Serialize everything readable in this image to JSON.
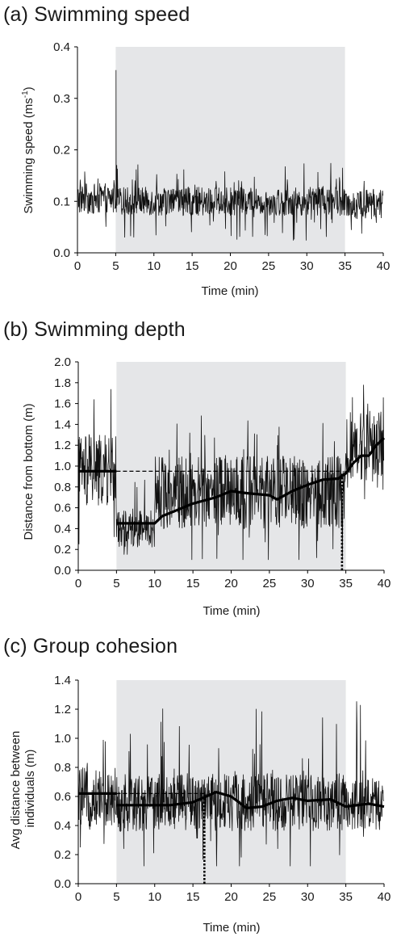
{
  "chart_data": [
    {
      "type": "line",
      "panel_label": "(a) Swimming speed",
      "xlabel": "Time (min)",
      "ylabel": "Swimming speed (ms-1)",
      "ylabel_main": "Swimming speed (ms",
      "ylabel_sup": "-1",
      "ylabel_end": ")",
      "xlim": [
        0,
        40
      ],
      "ylim": [
        0,
        0.4
      ],
      "x_ticks": [
        0,
        5,
        10,
        15,
        20,
        25,
        30,
        35,
        40
      ],
      "y_ticks": [
        "0.0",
        "0.1",
        "0.2",
        "0.3",
        "0.4"
      ],
      "shaded_region": [
        5,
        35
      ],
      "series": [
        {
          "style": "noisy-line",
          "segments": [
            {
              "x0": 0,
              "x1": 5,
              "mean": 0.105,
              "spread": 0.03,
              "min": 0.03,
              "max": 0.16
            },
            {
              "x0": 5,
              "x1": 35,
              "mean": 0.1,
              "spread": 0.028,
              "min": 0.02,
              "max": 0.18
            },
            {
              "x0": 35,
              "x1": 40,
              "mean": 0.095,
              "spread": 0.03,
              "min": 0.02,
              "max": 0.16
            }
          ],
          "spikes": [
            {
              "x": 5.05,
              "y": 0.355
            }
          ]
        }
      ]
    },
    {
      "type": "line",
      "panel_label": "(b) Swimming depth",
      "xlabel": "Time (min)",
      "ylabel": "Distance from bottom (m)",
      "xlim": [
        0,
        40
      ],
      "ylim": [
        0,
        2.0
      ],
      "x_ticks": [
        0,
        5,
        10,
        15,
        20,
        25,
        30,
        35,
        40
      ],
      "y_ticks": [
        "0.0",
        "0.2",
        "0.4",
        "0.6",
        "0.8",
        "1.0",
        "1.2",
        "1.4",
        "1.6",
        "1.8",
        "2.0"
      ],
      "shaded_region": [
        5,
        35
      ],
      "series": [
        {
          "style": "noisy-line",
          "segments": [
            {
              "x0": 0,
              "x1": 5,
              "mean": 0.95,
              "spread": 0.35,
              "min": 0.25,
              "max": 1.75
            },
            {
              "x0": 5,
              "x1": 10,
              "mean": 0.4,
              "spread": 0.18,
              "min": 0.15,
              "max": 1.0
            },
            {
              "x0": 10,
              "x1": 35,
              "mean": 0.75,
              "spread": 0.35,
              "min": 0.1,
              "max": 1.5
            },
            {
              "x0": 35,
              "x1": 40,
              "mean": 1.2,
              "spread": 0.35,
              "min": 0.4,
              "max": 1.8
            }
          ]
        },
        {
          "style": "thick-line",
          "points": [
            [
              5,
              0.45
            ],
            [
              10,
              0.45
            ],
            [
              11,
              0.52
            ],
            [
              13,
              0.58
            ],
            [
              15,
              0.64
            ],
            [
              18,
              0.7
            ],
            [
              20,
              0.76
            ],
            [
              22,
              0.74
            ],
            [
              25,
              0.72
            ],
            [
              26,
              0.68
            ],
            [
              28,
              0.76
            ],
            [
              30,
              0.82
            ],
            [
              32,
              0.87
            ],
            [
              34,
              0.88
            ],
            [
              35,
              0.93
            ],
            [
              36,
              1.03
            ],
            [
              37,
              1.1
            ],
            [
              38,
              1.1
            ],
            [
              39,
              1.2
            ],
            [
              40,
              1.27
            ]
          ]
        },
        {
          "style": "thick-line",
          "points": [
            [
              0,
              0.95
            ],
            [
              5,
              0.95
            ]
          ]
        },
        {
          "style": "dashed-line",
          "points": [
            [
              5,
              0.95
            ],
            [
              34.5,
              0.95
            ]
          ]
        },
        {
          "style": "dotted-vertical",
          "x": 34.5,
          "y_from": 0,
          "y_to": 0.93
        }
      ]
    },
    {
      "type": "line",
      "panel_label": "(c) Group cohesion",
      "xlabel": "Time (min)",
      "ylabel": "Avg distance between individuals (m)",
      "ylabel_line1": "Avg distance between",
      "ylabel_line2": "individuals (m)",
      "xlim": [
        0,
        40
      ],
      "ylim": [
        0,
        1.4
      ],
      "x_ticks": [
        0,
        5,
        10,
        15,
        20,
        25,
        30,
        35,
        40
      ],
      "y_ticks": [
        "0.0",
        "0.2",
        "0.4",
        "0.6",
        "0.8",
        "1.0",
        "1.2",
        "1.4"
      ],
      "shaded_region": [
        5,
        35
      ],
      "series": [
        {
          "style": "noisy-line",
          "segments": [
            {
              "x0": 0,
              "x1": 5,
              "mean": 0.6,
              "spread": 0.2,
              "min": 0.25,
              "max": 1.1
            },
            {
              "x0": 5,
              "x1": 35,
              "mean": 0.56,
              "spread": 0.2,
              "min": 0.12,
              "max": 1.22
            },
            {
              "x0": 35,
              "x1": 40,
              "mean": 0.55,
              "spread": 0.18,
              "min": 0.15,
              "max": 1.27
            }
          ]
        },
        {
          "style": "thick-line",
          "points": [
            [
              0,
              0.62
            ],
            [
              5,
              0.62
            ]
          ]
        },
        {
          "style": "thick-line",
          "points": [
            [
              5,
              0.54
            ],
            [
              12,
              0.54
            ],
            [
              15,
              0.56
            ],
            [
              18,
              0.63
            ],
            [
              20,
              0.6
            ],
            [
              22,
              0.52
            ],
            [
              24,
              0.53
            ],
            [
              26,
              0.57
            ],
            [
              28,
              0.59
            ],
            [
              30,
              0.57
            ],
            [
              33,
              0.58
            ],
            [
              35,
              0.53
            ],
            [
              38,
              0.55
            ],
            [
              40,
              0.53
            ]
          ]
        },
        {
          "style": "dashed-line",
          "points": [
            [
              5,
              0.62
            ],
            [
              16.5,
              0.62
            ]
          ]
        },
        {
          "style": "dotted-vertical",
          "x": 16.5,
          "y_from": 0,
          "y_to": 0.61
        }
      ]
    }
  ]
}
